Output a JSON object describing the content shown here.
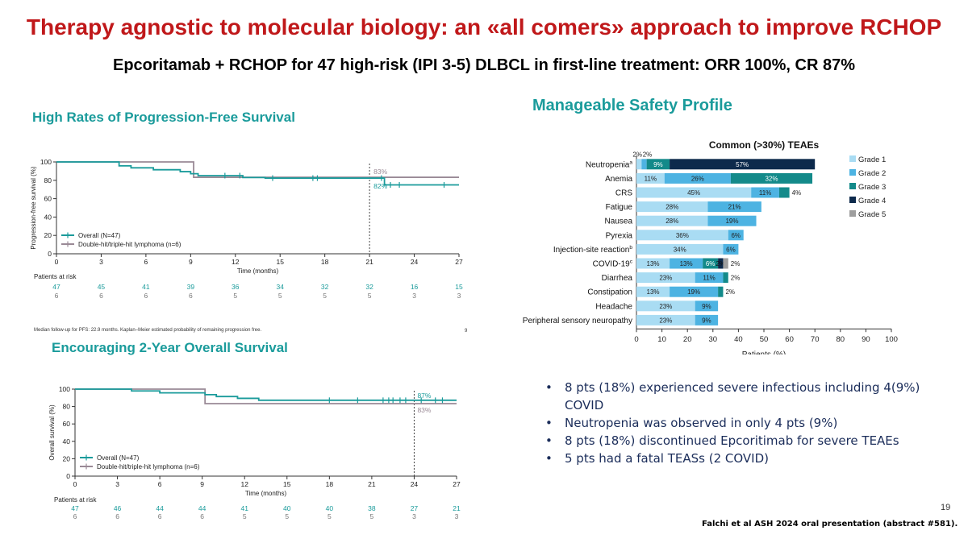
{
  "slide": {
    "title": "Therapy agnostic to molecular biology: an «all comers» approach to improve RCHOP",
    "subtitle": "Epcoritamab + RCHOP for 47 high-risk (IPI 3-5) DLBCL in first-line treatment: ORR 100%, CR 87%",
    "page_number": "19",
    "reference": "Falchi et al ASH 2024 oral presentation (abstract #581).",
    "bullets": [
      "8 pts (18%) experienced severe infectious including 4(9%)  COVID",
      "Neutropenia was observed in only 4 pts (9%)",
      "8 pts  (18%)  discontinued Epcoritimab for severe TEAEs",
      "5 pts had a fatal TEASs (2 COVID)"
    ]
  },
  "colors": {
    "title_red": "#c0181a",
    "teal": "#1a9b9b",
    "gray_line": "#9a8a96",
    "grade1": "#a9dcf3",
    "grade2": "#4db3e2",
    "grade3": "#138a8a",
    "grade4": "#0d2a4c",
    "grade5": "#9e9e9e"
  },
  "chart_data": [
    {
      "type": "line",
      "id": "pfs",
      "title": "High Rates of Progression-Free Survival",
      "xlabel": "Time (months)",
      "ylabel": "Progression-free survival (%)",
      "xlim": [
        0,
        27
      ],
      "ylim": [
        0,
        100
      ],
      "xticks": [
        0,
        3,
        6,
        9,
        12,
        15,
        18,
        21,
        24,
        27
      ],
      "yticks": [
        0,
        20,
        40,
        60,
        80,
        100
      ],
      "legend": "bottom-left",
      "reference_line_x": 21,
      "series": [
        {
          "name": "Overall (N=47)",
          "color_key": "teal",
          "label": "82%",
          "steps": [
            [
              0,
              100
            ],
            [
              4.2,
              95.7
            ],
            [
              5,
              93.6
            ],
            [
              6.5,
              91.5
            ],
            [
              8.3,
              89.4
            ],
            [
              9,
              87.2
            ],
            [
              9.5,
              85.1
            ],
            [
              12.5,
              83
            ],
            [
              14,
              82.4
            ],
            [
              22,
              75
            ],
            [
              27,
              75
            ]
          ],
          "censor_x": [
            11.3,
            12.3,
            14.5,
            17.2,
            17.5,
            21.8,
            22.4,
            23,
            26
          ]
        },
        {
          "name": "Double-hit/triple-hit lymphoma (n=6)",
          "color_key": "gray_line",
          "label": "83%",
          "steps": [
            [
              0,
              100
            ],
            [
              9.2,
              83.3
            ],
            [
              27,
              83.3
            ]
          ],
          "censor_x": []
        }
      ],
      "at_risk_title": "Patients at risk",
      "at_risk": {
        "overall": [
          "47",
          "45",
          "41",
          "39",
          "36",
          "34",
          "32",
          "32",
          "16",
          "15"
        ],
        "dhl": [
          "6",
          "6",
          "6",
          "6",
          "5",
          "5",
          "5",
          "5",
          "3",
          "3"
        ]
      },
      "footnote": "Median follow-up for PFS: 22.9 months. Kaplan–Meier estimated probability of remaining progression free.",
      "corner_mark": "9"
    },
    {
      "type": "line",
      "id": "os",
      "title": "Encouraging 2-Year Overall Survival",
      "xlabel": "Time (months)",
      "ylabel": "Overall survival (%)",
      "xlim": [
        0,
        27
      ],
      "ylim": [
        0,
        100
      ],
      "xticks": [
        0,
        3,
        6,
        9,
        12,
        15,
        18,
        21,
        24,
        27
      ],
      "yticks": [
        0,
        20,
        40,
        60,
        80,
        100
      ],
      "legend": "bottom-left",
      "reference_line_x": 24,
      "series": [
        {
          "name": "Overall (N=47)",
          "color_key": "teal",
          "label": "87%",
          "steps": [
            [
              0,
              100
            ],
            [
              4,
              97.9
            ],
            [
              6,
              95.7
            ],
            [
              9.2,
              93.6
            ],
            [
              10,
              91.5
            ],
            [
              11.5,
              89.4
            ],
            [
              13,
              87.2
            ],
            [
              27,
              87.2
            ]
          ],
          "censor_x": [
            18,
            20,
            21.8,
            22.2,
            22.5,
            23,
            23.4,
            24.5,
            25.5,
            26
          ]
        },
        {
          "name": "Double-hit/triple-hit lymphoma (n=6)",
          "color_key": "gray_line",
          "label": "83%",
          "steps": [
            [
              0,
              100
            ],
            [
              9.2,
              83.3
            ],
            [
              27,
              83.3
            ]
          ],
          "censor_x": []
        }
      ],
      "at_risk_title": "Patients at risk",
      "at_risk": {
        "overall": [
          "47",
          "46",
          "44",
          "44",
          "41",
          "40",
          "40",
          "38",
          "27",
          "21"
        ],
        "dhl": [
          "6",
          "6",
          "6",
          "6",
          "5",
          "5",
          "5",
          "5",
          "3",
          "3"
        ]
      }
    },
    {
      "type": "bar",
      "id": "teae",
      "orientation": "horizontal",
      "stacked": true,
      "section_title": "Manageable Safety Profile",
      "title": "Common (>30%) TEAEs",
      "xlabel": "Patients (%)",
      "xlim": [
        0,
        100
      ],
      "xticks": [
        0,
        10,
        20,
        30,
        40,
        50,
        60,
        70,
        80,
        90,
        100
      ],
      "legend": "right",
      "series_names": [
        "Grade 1",
        "Grade 2",
        "Grade 3",
        "Grade 4",
        "Grade 5"
      ],
      "categories": [
        {
          "label": "Neutropenia",
          "sup": "a",
          "values": [
            2,
            2,
            9,
            57,
            0
          ],
          "labels": [
            "2%",
            "2%",
            "9%",
            "57%",
            ""
          ]
        },
        {
          "label": "Anemia",
          "sup": "",
          "values": [
            11,
            26,
            32,
            0,
            0
          ],
          "labels": [
            "11%",
            "26%",
            "32%",
            "",
            ""
          ]
        },
        {
          "label": "CRS",
          "sup": "",
          "values": [
            45,
            11,
            4,
            0,
            0
          ],
          "labels": [
            "45%",
            "11%",
            "4%",
            "",
            ""
          ]
        },
        {
          "label": "Fatigue",
          "sup": "",
          "values": [
            28,
            21,
            0,
            0,
            0
          ],
          "labels": [
            "28%",
            "21%",
            "",
            "",
            ""
          ]
        },
        {
          "label": "Nausea",
          "sup": "",
          "values": [
            28,
            19,
            0,
            0,
            0
          ],
          "labels": [
            "28%",
            "19%",
            "",
            "",
            ""
          ]
        },
        {
          "label": "Pyrexia",
          "sup": "",
          "values": [
            36,
            6,
            0,
            0,
            0
          ],
          "labels": [
            "36%",
            "6%",
            "",
            "",
            ""
          ]
        },
        {
          "label": "Injection-site reaction",
          "sup": "b",
          "values": [
            34,
            6,
            0,
            0,
            0
          ],
          "labels": [
            "34%",
            "6%",
            "",
            "",
            ""
          ]
        },
        {
          "label": "COVID-19",
          "sup": "c",
          "values": [
            13,
            13,
            6,
            2,
            2
          ],
          "labels": [
            "13%",
            "13%",
            "6%",
            "2%",
            "2%"
          ]
        },
        {
          "label": "Diarrhea",
          "sup": "",
          "values": [
            23,
            11,
            2,
            0,
            0
          ],
          "labels": [
            "23%",
            "11%",
            "2%",
            "",
            ""
          ]
        },
        {
          "label": "Constipation",
          "sup": "",
          "values": [
            13,
            19,
            2,
            0,
            0
          ],
          "labels": [
            "13%",
            "19%",
            "2%",
            "",
            ""
          ]
        },
        {
          "label": "Headache",
          "sup": "",
          "values": [
            23,
            9,
            0,
            0,
            0
          ],
          "labels": [
            "23%",
            "9%",
            "",
            "",
            ""
          ]
        },
        {
          "label": "Peripheral sensory neuropathy",
          "sup": "",
          "values": [
            23,
            9,
            0,
            0,
            0
          ],
          "labels": [
            "23%",
            "9%",
            "",
            "",
            ""
          ]
        }
      ]
    }
  ]
}
